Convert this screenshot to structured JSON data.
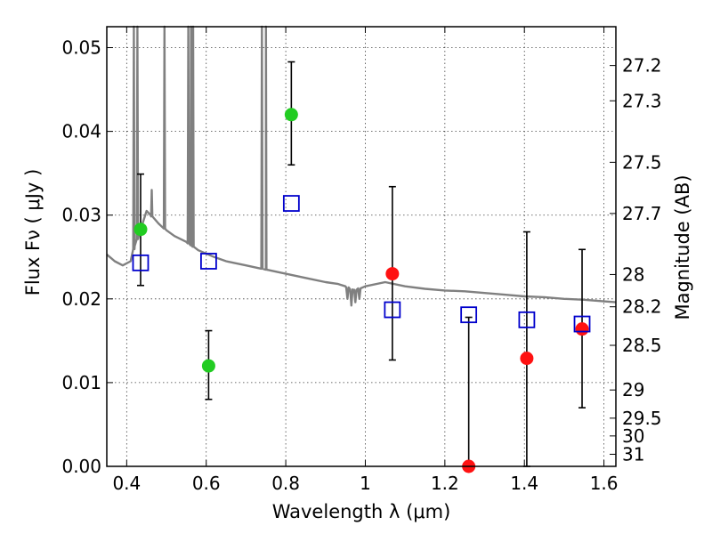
{
  "chart_data": {
    "type": "scatter",
    "title": "",
    "xlabel": "Wavelength  λ (μm)",
    "ylabel": "Flux  Fν  ( μJy )",
    "y2label": "Magnitude (AB)",
    "xlim": [
      0.35,
      1.63
    ],
    "ylim": [
      0.0,
      0.0525
    ],
    "grid": true,
    "x_ticks": [
      0.4,
      0.6,
      0.8,
      1.0,
      1.2,
      1.4,
      1.6
    ],
    "x_tick_labels": [
      "0.4",
      "0.6",
      "0.8",
      "1",
      "1.2",
      "1.4",
      "1.6"
    ],
    "y_ticks": [
      0.0,
      0.01,
      0.02,
      0.03,
      0.04,
      0.05
    ],
    "y_tick_labels": [
      "0.00",
      "0.01",
      "0.02",
      "0.03",
      "0.04",
      "0.05"
    ],
    "y2_ticks": [
      27.2,
      27.3,
      27.5,
      27.7,
      28,
      28.2,
      28.5,
      29,
      29.5,
      30,
      31
    ],
    "y2_tick_labels": [
      "27.2",
      "27.3",
      "27.5",
      "27.7",
      "28",
      "28.2",
      "28.5",
      "29",
      "29.5",
      "30",
      "31"
    ],
    "series": [
      {
        "marker": "circle",
        "color": "#22cc22",
        "points": [
          {
            "x": 0.435,
            "y": 0.0283,
            "err_lo": 0.0067,
            "err_hi": 0.0066
          },
          {
            "x": 0.606,
            "y": 0.012,
            "err_lo": 0.004,
            "err_hi": 0.0042
          },
          {
            "x": 0.814,
            "y": 0.042,
            "err_lo": 0.006,
            "err_hi": 0.0063
          }
        ]
      },
      {
        "marker": "circle",
        "color": "#ff1111",
        "points": [
          {
            "x": 1.068,
            "y": 0.023,
            "err_lo": 0.0103,
            "err_hi": 0.0104
          },
          {
            "x": 1.26,
            "y": 0.0,
            "err_lo": 0.0,
            "err_hi": 0.0178
          },
          {
            "x": 1.406,
            "y": 0.0129,
            "err_lo": 0.0129,
            "err_hi": 0.0151
          },
          {
            "x": 1.545,
            "y": 0.0164,
            "err_lo": 0.0094,
            "err_hi": 0.0095
          }
        ]
      },
      {
        "marker": "open-square",
        "color": "#0000cc",
        "points": [
          {
            "x": 0.435,
            "y": 0.0243
          },
          {
            "x": 0.606,
            "y": 0.0245
          },
          {
            "x": 0.814,
            "y": 0.0314
          },
          {
            "x": 1.068,
            "y": 0.0187
          },
          {
            "x": 1.26,
            "y": 0.0181
          },
          {
            "x": 1.406,
            "y": 0.0175
          },
          {
            "x": 1.545,
            "y": 0.017
          }
        ]
      }
    ],
    "model_spectrum": {
      "color": "#808080",
      "continuum": [
        [
          0.35,
          0.0253
        ],
        [
          0.37,
          0.0245
        ],
        [
          0.39,
          0.024
        ],
        [
          0.41,
          0.0245
        ],
        [
          0.42,
          0.0263
        ],
        [
          0.43,
          0.0275
        ],
        [
          0.44,
          0.029
        ],
        [
          0.45,
          0.0305
        ],
        [
          0.46,
          0.03
        ],
        [
          0.48,
          0.029
        ],
        [
          0.5,
          0.0282
        ],
        [
          0.52,
          0.0275
        ],
        [
          0.55,
          0.0268
        ],
        [
          0.58,
          0.0258
        ],
        [
          0.62,
          0.025
        ],
        [
          0.65,
          0.0245
        ],
        [
          0.7,
          0.024
        ],
        [
          0.75,
          0.0235
        ],
        [
          0.8,
          0.023
        ],
        [
          0.85,
          0.0225
        ],
        [
          0.9,
          0.022
        ],
        [
          0.93,
          0.0218
        ],
        [
          0.95,
          0.0215
        ],
        [
          0.97,
          0.021
        ],
        [
          1.0,
          0.0215
        ],
        [
          1.05,
          0.022
        ],
        [
          1.1,
          0.0215
        ],
        [
          1.15,
          0.0212
        ],
        [
          1.2,
          0.021
        ],
        [
          1.25,
          0.0209
        ],
        [
          1.3,
          0.0207
        ],
        [
          1.35,
          0.0205
        ],
        [
          1.4,
          0.0203
        ],
        [
          1.45,
          0.0202
        ],
        [
          1.5,
          0.02
        ],
        [
          1.55,
          0.0199
        ],
        [
          1.6,
          0.0197
        ],
        [
          1.63,
          0.0196
        ]
      ],
      "emission_lines": [
        [
          0.418,
          0.0525
        ],
        [
          0.427,
          0.0525
        ],
        [
          0.463,
          0.033
        ],
        [
          0.495,
          0.0525
        ],
        [
          0.555,
          0.0525
        ],
        [
          0.562,
          0.0525
        ],
        [
          0.567,
          0.0525
        ],
        [
          0.74,
          0.0525
        ],
        [
          0.75,
          0.0525
        ]
      ],
      "absorption_dips": [
        [
          0.955,
          0.02
        ],
        [
          0.965,
          0.0192
        ],
        [
          0.975,
          0.0196
        ],
        [
          0.985,
          0.02
        ]
      ]
    }
  }
}
